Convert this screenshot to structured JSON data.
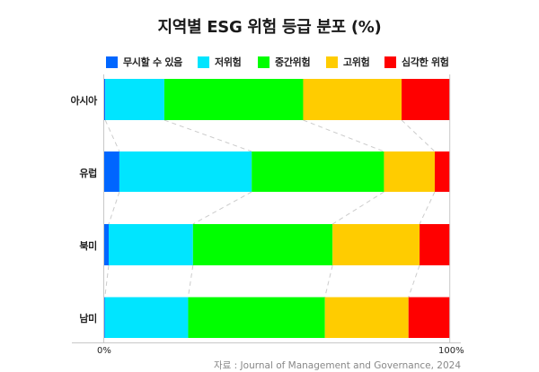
{
  "title": "지역별 ESG 위험 등급 분포 (%)",
  "legend": [
    {
      "label": "무시할 수 있음",
      "color": "#0066ff"
    },
    {
      "label": "저위험",
      "color": "#00e5ff"
    },
    {
      "label": "중간위험",
      "color": "#00ff00"
    },
    {
      "label": "고위험",
      "color": "#ffcc00"
    },
    {
      "label": "심각한 위험",
      "color": "#ff0000"
    }
  ],
  "x_ticks": [
    "0%",
    "100%"
  ],
  "source": "자료 : Journal of Management and Governance, 2024",
  "chart_data": {
    "type": "bar",
    "orientation": "horizontal",
    "stacked": "percent",
    "title": "지역별 ESG 위험 등급 분포 (%)",
    "xlabel": "",
    "ylabel": "",
    "xlim": [
      0,
      100
    ],
    "x_tick_labels": [
      "0%",
      "100%"
    ],
    "categories": [
      "아시아",
      "유럽",
      "북미",
      "남미"
    ],
    "series": [
      {
        "name": "무시할 수 있음",
        "color": "#0066ff",
        "values": [
          0.3,
          4.4,
          1.3,
          0.2
        ]
      },
      {
        "name": "저위험",
        "color": "#00e5ff",
        "values": [
          17.1,
          38.3,
          24.4,
          24.1
        ]
      },
      {
        "name": "중간위험",
        "color": "#00ff00",
        "values": [
          40.2,
          38.3,
          40.4,
          39.6
        ]
      },
      {
        "name": "고위험",
        "color": "#ffcc00",
        "values": [
          28.5,
          14.7,
          25.2,
          24.2
        ]
      },
      {
        "name": "심각한 위험",
        "color": "#ff0000",
        "values": [
          13.9,
          4.3,
          8.7,
          11.9
        ]
      }
    ],
    "legend_position": "top",
    "grid": false,
    "connector_lines": "dashed gray lines linking cumulative boundaries between adjacent bars",
    "annotation": "자료 : Journal of Management and Governance, 2024"
  }
}
